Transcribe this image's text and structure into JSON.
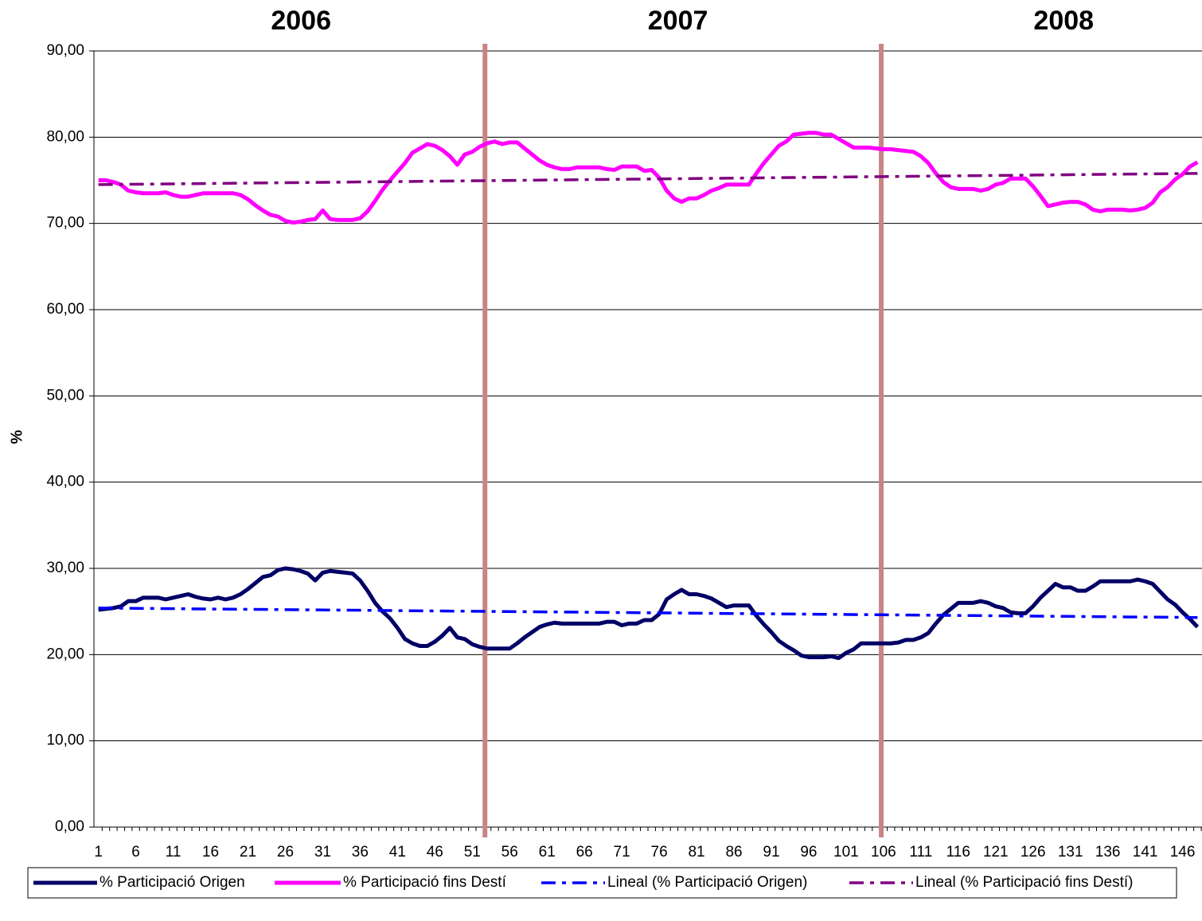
{
  "chart_data": {
    "type": "line",
    "annotations": [
      {
        "text": "2006",
        "x": 28.1
      },
      {
        "text": "2007",
        "x": 78.5
      },
      {
        "text": "2008",
        "x": 130.1
      }
    ],
    "vlines": [
      52.7,
      105.7
    ],
    "y_label": "%",
    "x": [
      1,
      2,
      3,
      4,
      5,
      6,
      7,
      8,
      9,
      10,
      11,
      12,
      13,
      14,
      15,
      16,
      17,
      18,
      19,
      20,
      21,
      22,
      23,
      24,
      25,
      26,
      27,
      28,
      29,
      30,
      31,
      32,
      33,
      34,
      35,
      36,
      37,
      38,
      39,
      40,
      41,
      42,
      43,
      44,
      45,
      46,
      47,
      48,
      49,
      50,
      51,
      52,
      53,
      54,
      55,
      56,
      57,
      58,
      59,
      60,
      61,
      62,
      63,
      64,
      65,
      66,
      67,
      68,
      69,
      70,
      71,
      72,
      73,
      74,
      75,
      76,
      77,
      78,
      79,
      80,
      81,
      82,
      83,
      84,
      85,
      86,
      87,
      88,
      89,
      90,
      91,
      92,
      93,
      94,
      95,
      96,
      97,
      98,
      99,
      100,
      101,
      102,
      103,
      104,
      105,
      106,
      107,
      108,
      109,
      110,
      111,
      112,
      113,
      114,
      115,
      116,
      117,
      118,
      119,
      120,
      121,
      122,
      123,
      124,
      125,
      126,
      127,
      128,
      129,
      130,
      131,
      132,
      133,
      134,
      135,
      136,
      137,
      138,
      139,
      140,
      141,
      142,
      143,
      144,
      145,
      146,
      147,
      148
    ],
    "xlim": [
      0.4,
      148.6
    ],
    "xticks": [
      1,
      6,
      11,
      16,
      21,
      26,
      31,
      36,
      41,
      46,
      51,
      56,
      61,
      66,
      71,
      76,
      81,
      86,
      91,
      96,
      101,
      106,
      111,
      116,
      121,
      126,
      131,
      136,
      141,
      146
    ],
    "ylim": [
      0,
      90
    ],
    "yticks": [
      {
        "value": 0,
        "label": "0,00"
      },
      {
        "value": 10,
        "label": "10,00"
      },
      {
        "value": 20,
        "label": "20,00"
      },
      {
        "value": 30,
        "label": "30,00"
      },
      {
        "value": 40,
        "label": "40,00"
      },
      {
        "value": 50,
        "label": "50,00"
      },
      {
        "value": 60,
        "label": "60,00"
      },
      {
        "value": 70,
        "label": "70,00"
      },
      {
        "value": 80,
        "label": "80,00"
      },
      {
        "value": 90,
        "label": "90,00"
      }
    ],
    "grid": true,
    "legend": "bottom",
    "series": [
      {
        "name": "% Participació Origen",
        "color": "#000066",
        "values": [
          25.2,
          25.3,
          25.4,
          25.6,
          26.2,
          26.2,
          26.6,
          26.6,
          26.6,
          26.4,
          26.6,
          26.8,
          27,
          26.7,
          26.5,
          26.4,
          26.6,
          26.4,
          26.6,
          27,
          27.6,
          28.3,
          29,
          29.2,
          29.8,
          30,
          29.9,
          29.7,
          29.4,
          28.6,
          29.5,
          29.7,
          29.6,
          29.5,
          29.4,
          28.6,
          27.4,
          26,
          25,
          24.2,
          23.1,
          21.8,
          21.3,
          21,
          21,
          21.5,
          22.2,
          23.1,
          22,
          21.8,
          21.2,
          20.9,
          20.7,
          20.7,
          20.7,
          20.7,
          21.3,
          22,
          22.6,
          23.2,
          23.5,
          23.7,
          23.6,
          23.6,
          23.6,
          23.6,
          23.6,
          23.6,
          23.8,
          23.8,
          23.4,
          23.6,
          23.6,
          24,
          24,
          24.7,
          26.4,
          27,
          27.5,
          27,
          27,
          26.8,
          26.5,
          26,
          25.5,
          25.7,
          25.7,
          25.7,
          24.5,
          23.5,
          22.6,
          21.6,
          21,
          20.5,
          19.9,
          19.7,
          19.7,
          19.7,
          19.8,
          19.6,
          20.2,
          20.6,
          21.3,
          21.3,
          21.3,
          21.3,
          21.3,
          21.4,
          21.7,
          21.7,
          22,
          22.5,
          23.6,
          24.6,
          25.3,
          26,
          26,
          26,
          26.2,
          26,
          25.6,
          25.4,
          24.9,
          24.8,
          24.8,
          25.6,
          26.6,
          27.4,
          28.2,
          27.8,
          27.8,
          27.4,
          27.4,
          27.9,
          28.5,
          28.5,
          28.5,
          28.5,
          28.5,
          28.7,
          28.5,
          28.2,
          27.3,
          26.4,
          25.8,
          24.9,
          24.1,
          23.2
        ]
      },
      {
        "name": "% Participació fins Destí",
        "color": "#ff00ff",
        "values": [
          75,
          75,
          74.8,
          74.5,
          73.8,
          73.6,
          73.5,
          73.5,
          73.5,
          73.6,
          73.3,
          73.1,
          73.1,
          73.3,
          73.5,
          73.5,
          73.5,
          73.5,
          73.5,
          73.3,
          72.8,
          72.1,
          71.5,
          71,
          70.8,
          70.3,
          70.1,
          70.2,
          70.4,
          70.5,
          71.5,
          70.5,
          70.4,
          70.4,
          70.4,
          70.6,
          71.4,
          72.6,
          73.9,
          75,
          76,
          77,
          78.2,
          78.7,
          79.2,
          79,
          78.5,
          77.8,
          76.8,
          78,
          78.3,
          78.9,
          79.3,
          79.5,
          79.2,
          79.4,
          79.4,
          78.7,
          78,
          77.3,
          76.8,
          76.5,
          76.3,
          76.3,
          76.5,
          76.5,
          76.5,
          76.5,
          76.3,
          76.2,
          76.6,
          76.6,
          76.6,
          76.1,
          76.2,
          75.3,
          73.8,
          72.9,
          72.5,
          72.9,
          72.9,
          73.3,
          73.8,
          74.1,
          74.5,
          74.5,
          74.5,
          74.5,
          75.8,
          77,
          78,
          79,
          79.5,
          80.3,
          80.4,
          80.5,
          80.5,
          80.3,
          80.3,
          79.8,
          79.3,
          78.8,
          78.8,
          78.8,
          78.7,
          78.6,
          78.6,
          78.5,
          78.4,
          78.3,
          77.8,
          77,
          75.8,
          74.8,
          74.2,
          74,
          74,
          74,
          73.8,
          74,
          74.5,
          74.7,
          75.2,
          75.2,
          75.2,
          74.3,
          73.2,
          72,
          72.2,
          72.4,
          72.5,
          72.5,
          72.2,
          71.6,
          71.4,
          71.6,
          71.6,
          71.6,
          71.5,
          71.6,
          71.8,
          72.4,
          73.6,
          74.2,
          75.1,
          75.7,
          76.6,
          77.1
        ]
      },
      {
        "name": "Lineal (% Participació Origen)",
        "color": "#0000ff",
        "dashed": true,
        "x": [
          1,
          148
        ],
        "values": [
          25.4,
          24.3
        ]
      },
      {
        "name": "Lineal (% Participació fins Destí)",
        "color": "#800080",
        "dashed": true,
        "x": [
          1,
          148
        ],
        "values": [
          74.5,
          75.8
        ]
      }
    ]
  }
}
